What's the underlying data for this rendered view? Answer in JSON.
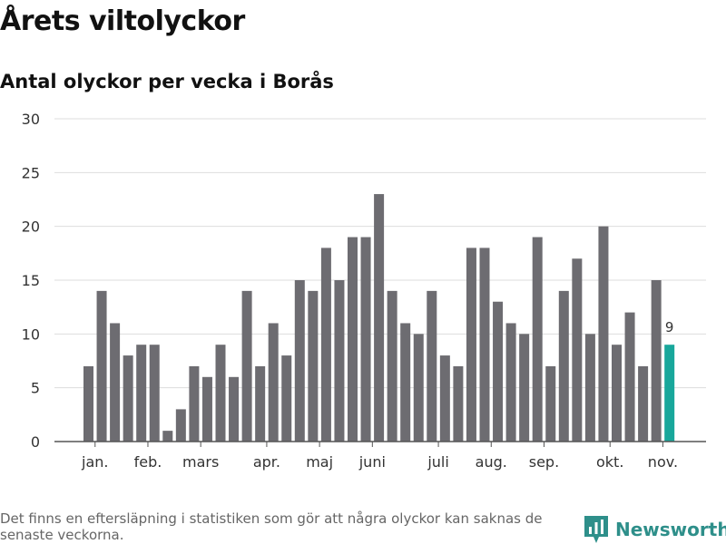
{
  "title": "Årets viltolyckor",
  "subtitle": "Antal olyckor per vecka i Borås",
  "footnote": "Det finns en eftersläpning i statistiken som gör att några olyckor kan saknas de senaste veckorna.",
  "brand": {
    "name": "Newsworthy"
  },
  "colors": {
    "bar": "#6d6c71",
    "highlight": "#18a79b",
    "grid": "#dddddd",
    "axis": "#555555",
    "text": "#333333",
    "brand": "#2e8f8a"
  },
  "chart_data": {
    "type": "bar",
    "values": [
      7,
      14,
      11,
      8,
      9,
      9,
      1,
      3,
      7,
      6,
      9,
      6,
      14,
      7,
      11,
      8,
      15,
      14,
      18,
      15,
      19,
      19,
      23,
      14,
      11,
      10,
      14,
      8,
      7,
      18,
      18,
      13,
      11,
      10,
      19,
      7,
      14,
      17,
      10,
      20,
      9,
      12,
      7,
      15,
      9
    ],
    "highlight_index": 44,
    "highlight_label": "9",
    "ylim": [
      0,
      30
    ],
    "yticks": [
      0,
      5,
      10,
      15,
      20,
      25,
      30
    ],
    "month_labels": [
      {
        "label": "jan.",
        "at": 0.5
      },
      {
        "label": "feb.",
        "at": 4.5
      },
      {
        "label": "mars",
        "at": 8.5
      },
      {
        "label": "apr.",
        "at": 13.5
      },
      {
        "label": "maj",
        "at": 17.5
      },
      {
        "label": "juni",
        "at": 21.5
      },
      {
        "label": "juli",
        "at": 26.5
      },
      {
        "label": "aug.",
        "at": 30.5
      },
      {
        "label": "sep.",
        "at": 34.5
      },
      {
        "label": "okt.",
        "at": 39.5
      },
      {
        "label": "nov.",
        "at": 43.5
      }
    ],
    "xlabel": "",
    "ylabel": "",
    "grid": true,
    "legend": "none"
  }
}
